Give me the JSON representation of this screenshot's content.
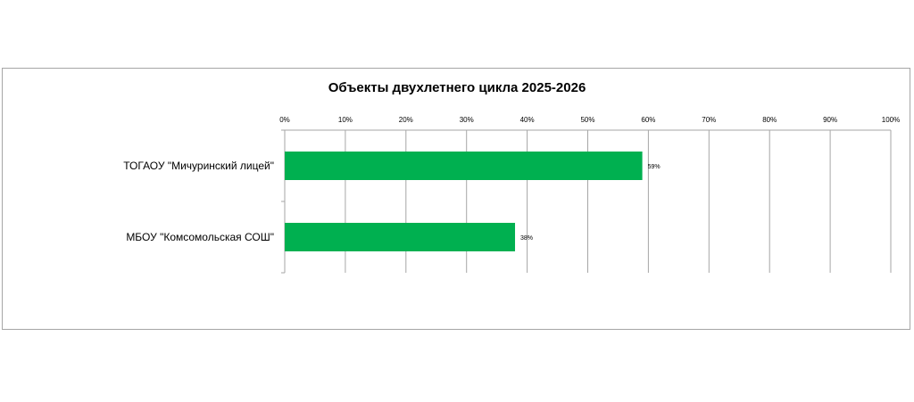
{
  "chart_data": {
    "type": "bar",
    "orientation": "horizontal",
    "title": "Объекты двухлетнего цикла 2025-2026",
    "categories": [
      "ТОГАОУ \"Мичуринский лицей\"",
      "МБОУ \"Комсомольская СОШ\""
    ],
    "values": [
      59,
      38
    ],
    "data_labels": [
      "59%",
      "38%"
    ],
    "xlim": [
      0,
      100
    ],
    "x_ticks": [
      0,
      10,
      20,
      30,
      40,
      50,
      60,
      70,
      80,
      90,
      100
    ],
    "x_tick_labels": [
      "0%",
      "10%",
      "20%",
      "30%",
      "40%",
      "50%",
      "60%",
      "70%",
      "80%",
      "90%",
      "100%"
    ],
    "x_axis_position": "top",
    "grid": true,
    "legend": "none",
    "bar_color": "#00b050",
    "grid_color": "#a6a6a6"
  }
}
